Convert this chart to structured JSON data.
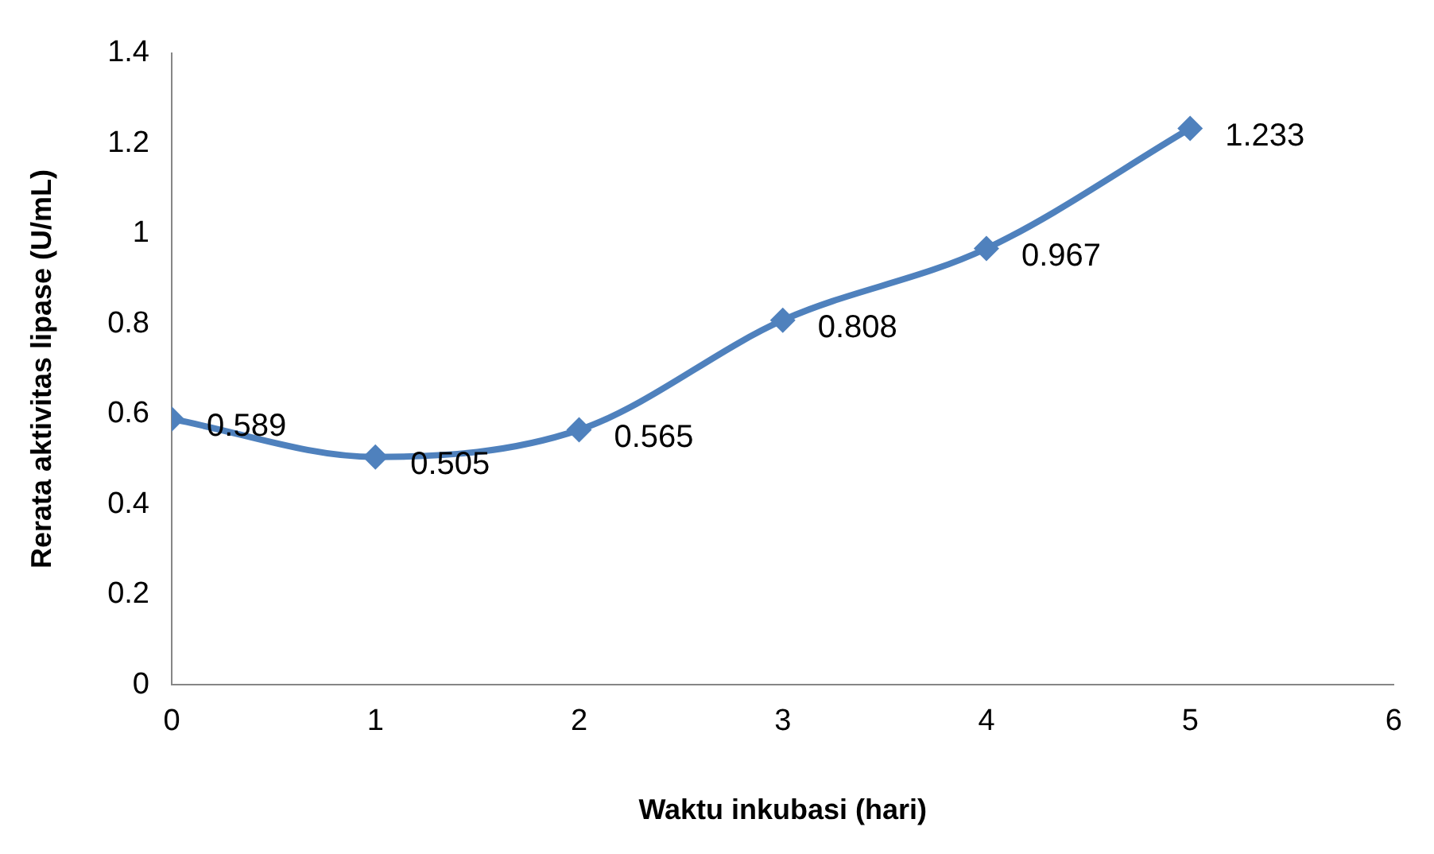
{
  "chart_data": {
    "type": "line",
    "xlabel": "Waktu inkubasi (hari)",
    "ylabel": "Rerata aktivitas lipase (U/mL)",
    "x": [
      0,
      1,
      2,
      3,
      4,
      5
    ],
    "series": [
      {
        "color": "#4f81bd",
        "values": [
          0.589,
          0.505,
          0.565,
          0.808,
          0.967,
          1.233
        ]
      }
    ],
    "xlim": [
      0,
      6
    ],
    "xticks": [
      0,
      1,
      2,
      3,
      4,
      5,
      6
    ],
    "ylim": [
      0,
      1.4
    ],
    "yticks": [
      0,
      0.2,
      0.4,
      0.6,
      0.8,
      1,
      1.2,
      1.4
    ],
    "grid": false,
    "legend": false,
    "marker": "diamond",
    "line_style": "solid",
    "data_labels": true
  }
}
